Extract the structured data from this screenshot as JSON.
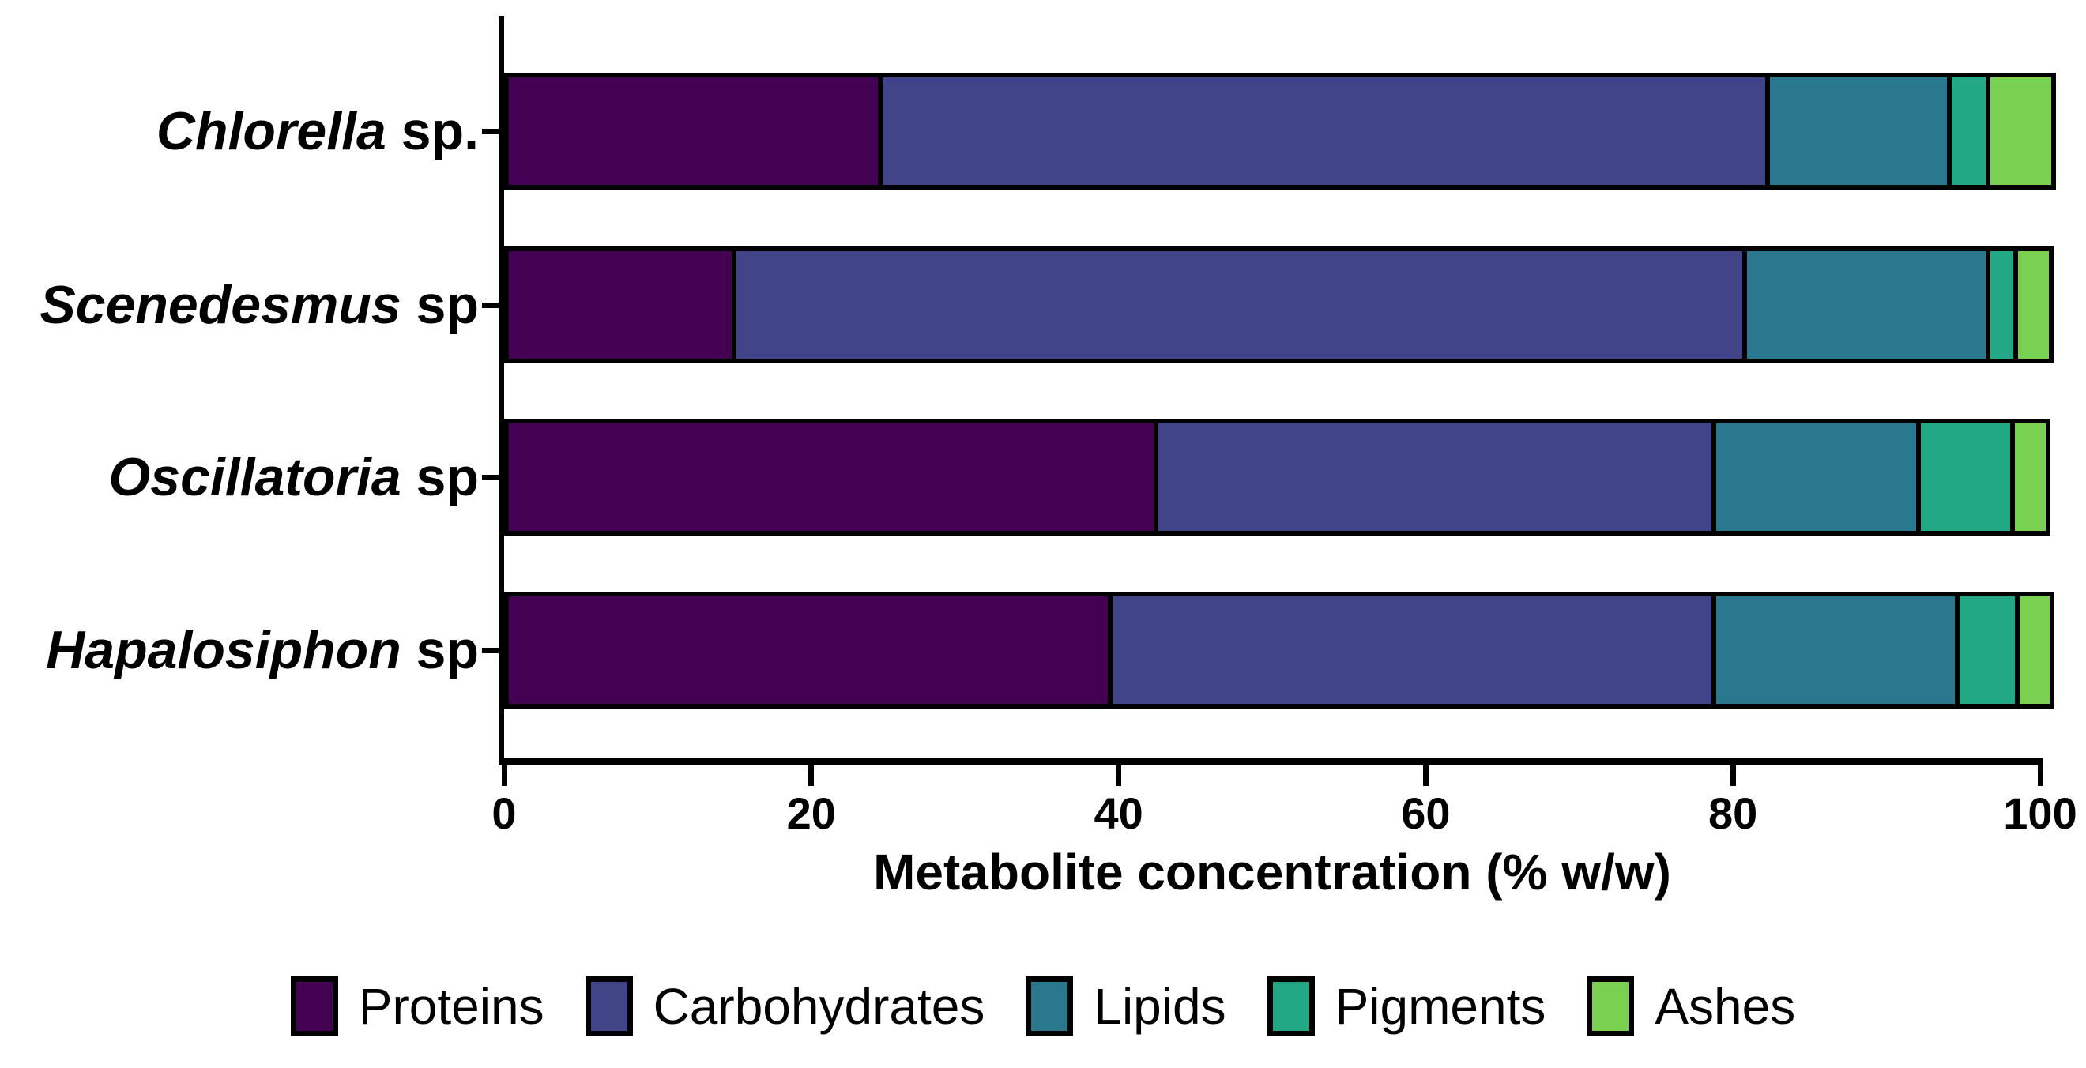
{
  "chart_data": {
    "type": "bar",
    "orientation": "horizontal",
    "stacked": true,
    "xlabel": "Metabolite concentration (% w/w)",
    "ylabel": "",
    "xlim": [
      0,
      100
    ],
    "x_ticks": [
      0,
      20,
      40,
      60,
      80,
      100
    ],
    "grid": false,
    "legend_position": "bottom",
    "categories": [
      {
        "genus": "Chlorella",
        "suffix": " sp."
      },
      {
        "genus": "Scenedesmus",
        "suffix": " sp"
      },
      {
        "genus": "Oscillatoria",
        "suffix": " sp"
      },
      {
        "genus": "Hapalosiphon",
        "suffix": " sp"
      }
    ],
    "series": [
      {
        "name": "Proteins",
        "color": "#440154",
        "values": [
          24.0,
          14.5,
          42.0,
          39.0
        ]
      },
      {
        "name": "Carbohydrates",
        "color": "#414487",
        "values": [
          57.5,
          65.5,
          36.0,
          39.0
        ]
      },
      {
        "name": "Lipids",
        "color": "#2a788e",
        "values": [
          11.5,
          15.5,
          13.0,
          15.5
        ]
      },
      {
        "name": "Pigments",
        "color": "#22a884",
        "values": [
          2.2,
          1.5,
          5.8,
          3.6
        ]
      },
      {
        "name": "Ashes",
        "color": "#7ad151",
        "values": [
          4.0,
          2.0,
          2.0,
          2.0
        ]
      }
    ],
    "colors": {
      "axis": "#000000",
      "segment_border": "#000000",
      "background": "#ffffff"
    }
  }
}
